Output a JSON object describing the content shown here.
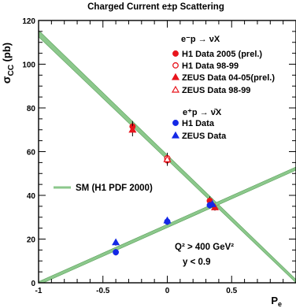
{
  "chart_data": {
    "type": "scatter",
    "title": "Charged Current e±p Scattering",
    "ylabel": "σ",
    "ylabel_sub": "CC",
    "ylabel_unit": " (pb)",
    "xlabel": "P",
    "xlabel_sub": "e",
    "xlim": [
      -1,
      1
    ],
    "ylim": [
      0,
      120
    ],
    "x_ticks": [
      -1,
      -0.5,
      0,
      0.5
    ],
    "x_tick_labels": [
      "-1",
      "-0.5",
      "0",
      "0.5"
    ],
    "y_ticks": [
      0,
      20,
      40,
      60,
      80,
      100,
      120
    ],
    "y_tick_labels": [
      "0",
      "20",
      "40",
      "60",
      "80",
      "100",
      "120"
    ],
    "legend": {
      "placement": "top-right",
      "eminus_header": "e⁻p → νX",
      "eplus_header": "e⁺p → ν̄X",
      "sm_label": "SM (H1 PDF 2000)"
    },
    "annotations": {
      "q2": "Q² > 400 GeV²",
      "y": "y < 0.9"
    },
    "colors": {
      "data": "#e8141c",
      "eplus": "#1428e6",
      "band": "#8cc88c",
      "band_edge": "#5aa05a"
    },
    "sm_bands": [
      {
        "name": "e⁻p",
        "x": [
          -1,
          1
        ],
        "y_low": [
          112.5,
          0
        ],
        "y_high": [
          115.5,
          1.5
        ]
      },
      {
        "name": "e⁺p",
        "x": [
          -1,
          1
        ],
        "y_low": [
          -1,
          51.5
        ],
        "y_high": [
          0.5,
          53
        ]
      }
    ],
    "series": [
      {
        "name": "H1 Data 2005 (prel.)",
        "marker": "circle-filled",
        "color": "#e8141c",
        "points": [
          {
            "x": -0.27,
            "y": 71.5,
            "err": 2.5
          },
          {
            "x": 0.0,
            "y": 56,
            "err": 2.5
          },
          {
            "x": 0.33,
            "y": 37.5,
            "err": 2.0
          }
        ]
      },
      {
        "name": "H1 Data 98-99",
        "marker": "circle-open",
        "color": "#e8141c",
        "points": [
          {
            "x": 0.0,
            "y": 57,
            "err": 2.5
          }
        ]
      },
      {
        "name": "ZEUS Data 04-05(prel.)",
        "marker": "triangle-filled",
        "color": "#e8141c",
        "points": [
          {
            "x": -0.27,
            "y": 70,
            "err": 3.0
          },
          {
            "x": 0.37,
            "y": 34.5,
            "err": 1.5
          }
        ]
      },
      {
        "name": "ZEUS Data 98-99",
        "marker": "triangle-open",
        "color": "#e8141c",
        "points": [
          {
            "x": 0.0,
            "y": 56.5,
            "err": 2.5
          }
        ]
      },
      {
        "name": "H1 Data",
        "marker": "circle-filled",
        "color": "#1428e6",
        "points": [
          {
            "x": -0.4,
            "y": 14,
            "err": 1.5
          },
          {
            "x": 0.0,
            "y": 28,
            "err": 1.5
          },
          {
            "x": 0.33,
            "y": 35.5,
            "err": 1.5
          }
        ]
      },
      {
        "name": "ZEUS Data",
        "marker": "triangle-filled",
        "color": "#1428e6",
        "points": [
          {
            "x": -0.4,
            "y": 18.5,
            "err": 1.5
          },
          {
            "x": 0.0,
            "y": 28.5,
            "err": 1.2
          },
          {
            "x": 0.35,
            "y": 36,
            "err": 1.5
          }
        ]
      }
    ]
  }
}
